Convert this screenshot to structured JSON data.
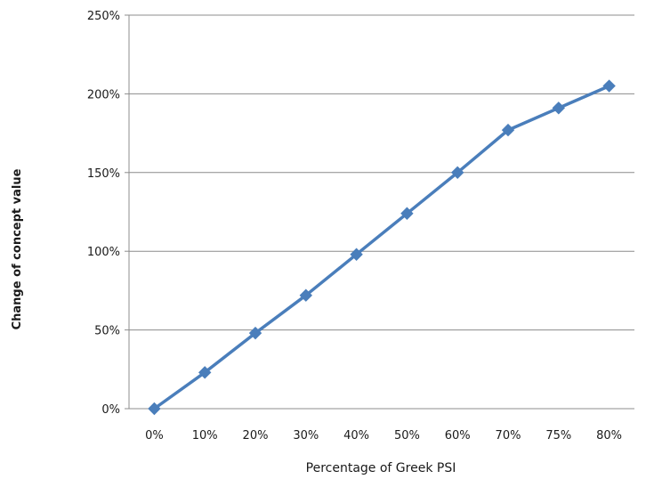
{
  "chart_data": {
    "type": "line",
    "title": "",
    "xlabel": "Percentage of Greek PSI",
    "ylabel": "Change of concept value",
    "categories": [
      "0%",
      "10%",
      "20%",
      "30%",
      "40%",
      "50%",
      "60%",
      "70%",
      "75%",
      "80%"
    ],
    "series": [
      {
        "values": [
          0,
          23,
          48,
          72,
          98,
          124,
          150,
          177,
          191,
          205
        ],
        "color": "#4a7ebb",
        "marker": "diamond"
      }
    ],
    "ylim": [
      0,
      250
    ],
    "yticks": [
      0,
      50,
      100,
      150,
      200,
      250
    ],
    "ytick_labels": [
      "0%",
      "50%",
      "100%",
      "150%",
      "200%",
      "250%"
    ],
    "grid": "horizontal",
    "legend": "none"
  }
}
